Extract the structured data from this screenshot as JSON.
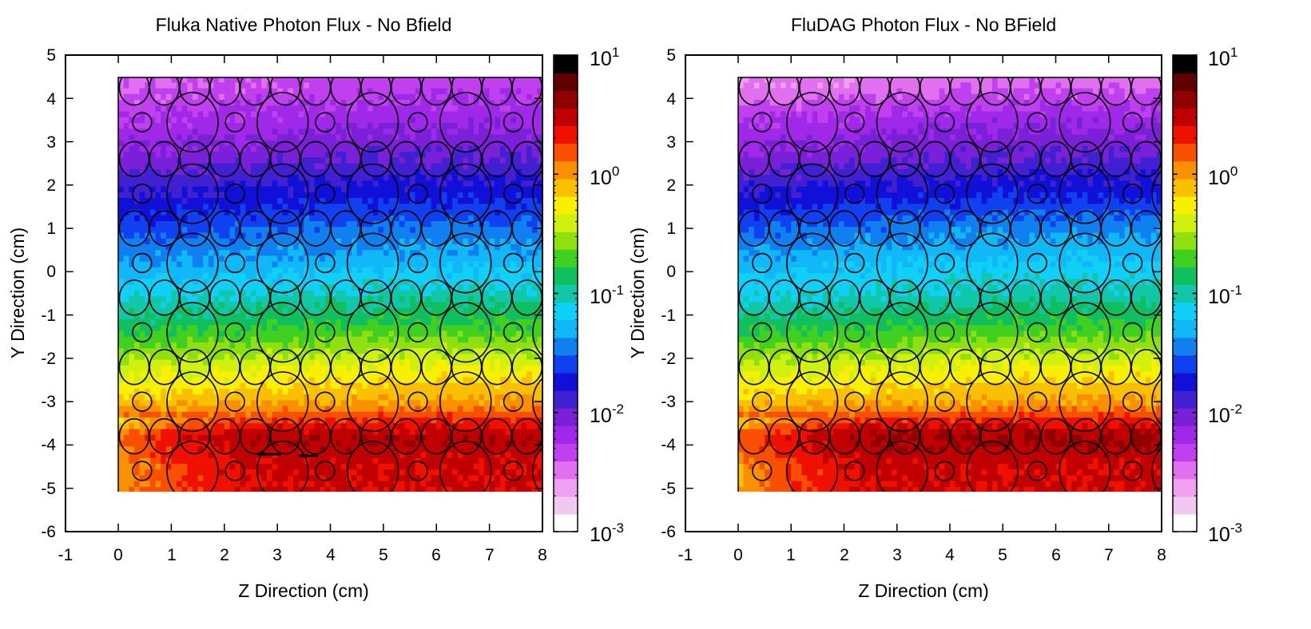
{
  "chart_data": [
    {
      "type": "heatmap",
      "title": "Fluka Native Photon Flux - No Bfield",
      "xlabel": "Z Direction (cm)",
      "ylabel": "Y Direction (cm)",
      "xlim": [
        -1,
        8
      ],
      "ylim": [
        -6,
        5
      ],
      "x_ticks": [
        "-1",
        "0",
        "1",
        "2",
        "3",
        "4",
        "5",
        "6",
        "7",
        "8"
      ],
      "y_ticks": [
        "5",
        "4",
        "3",
        "2",
        "1",
        "0",
        "-1",
        "-2",
        "-3",
        "-4",
        "-5",
        "-6"
      ],
      "data_region": {
        "z": [
          0,
          8
        ],
        "y": [
          -5.1,
          4.5
        ]
      },
      "colorbar": {
        "scale": "log",
        "range": [
          0.001,
          10
        ],
        "ticks": [
          "10^1",
          "10^0",
          "10^-1",
          "10^-2",
          "10^-3"
        ]
      },
      "flux_rows": [
        {
          "y": 4.3,
          "value": 0.004
        },
        {
          "y": 3.5,
          "value": 0.006
        },
        {
          "y": 2.6,
          "value": 0.01
        },
        {
          "y": 1.9,
          "value": 0.016
        },
        {
          "y": 1.0,
          "value": 0.03
        },
        {
          "y": 0.2,
          "value": 0.05
        },
        {
          "y": -0.6,
          "value": 0.1
        },
        {
          "y": -1.4,
          "value": 0.2
        },
        {
          "y": -2.2,
          "value": 0.5
        },
        {
          "y": -3.0,
          "value": 1.0
        },
        {
          "y": -3.8,
          "value": 4.0
        },
        {
          "y": -4.6,
          "value": 3.0
        }
      ]
    },
    {
      "type": "heatmap",
      "title": "FluDAG Photon Flux - No BField",
      "xlabel": "Z Direction (cm)",
      "ylabel": "Y Direction (cm)",
      "xlim": [
        -1,
        8
      ],
      "ylim": [
        -6,
        5
      ],
      "x_ticks": [
        "-1",
        "0",
        "1",
        "2",
        "3",
        "4",
        "5",
        "6",
        "7",
        "8"
      ],
      "y_ticks": [
        "5",
        "4",
        "3",
        "2",
        "1",
        "0",
        "-1",
        "-2",
        "-3",
        "-4",
        "-5",
        "-6"
      ],
      "data_region": {
        "z": [
          0,
          8
        ],
        "y": [
          -5.1,
          4.5
        ]
      },
      "colorbar": {
        "scale": "log",
        "range": [
          0.001,
          10
        ],
        "ticks": [
          "10^1",
          "10^0",
          "10^-1",
          "10^-2",
          "10^-3"
        ]
      },
      "flux_rows": [
        {
          "y": 4.3,
          "value": 0.003
        },
        {
          "y": 3.5,
          "value": 0.006
        },
        {
          "y": 2.6,
          "value": 0.01
        },
        {
          "y": 1.9,
          "value": 0.017
        },
        {
          "y": 1.0,
          "value": 0.035
        },
        {
          "y": 0.2,
          "value": 0.06
        },
        {
          "y": -0.6,
          "value": 0.1
        },
        {
          "y": -1.4,
          "value": 0.2
        },
        {
          "y": -2.2,
          "value": 0.5
        },
        {
          "y": -3.0,
          "value": 1.0
        },
        {
          "y": -3.8,
          "value": 4.5
        },
        {
          "y": -4.6,
          "value": 3.0
        }
      ]
    }
  ],
  "geometry_rows": [
    {
      "y": 4.25,
      "type": "small-row"
    },
    {
      "y": 3.45,
      "type": "mixed-row"
    },
    {
      "y": 2.6,
      "type": "small-row"
    },
    {
      "y": 1.8,
      "type": "mixed-row"
    },
    {
      "y": 1.0,
      "type": "small-row"
    },
    {
      "y": 0.2,
      "type": "mixed-row"
    },
    {
      "y": -0.6,
      "type": "small-row"
    },
    {
      "y": -1.4,
      "type": "mixed-row"
    },
    {
      "y": -2.2,
      "type": "small-row"
    },
    {
      "y": -3.0,
      "type": "mixed-row"
    },
    {
      "y": -3.8,
      "type": "small-row"
    },
    {
      "y": -4.6,
      "type": "mixed-row"
    }
  ],
  "colors": {
    "palette": [
      "#ffffff",
      "#f0c8f0",
      "#f0a0f0",
      "#e070f0",
      "#c040f0",
      "#a028e8",
      "#7a20d8",
      "#4020d0",
      "#1010d8",
      "#1040f0",
      "#1080f0",
      "#10b8f8",
      "#10d0f8",
      "#10c8a8",
      "#10c060",
      "#40d020",
      "#90e010",
      "#d0f010",
      "#f8f000",
      "#f8c000",
      "#f89000",
      "#f85000",
      "#f01000",
      "#c00000",
      "#900000",
      "#600000",
      "#000000"
    ]
  }
}
